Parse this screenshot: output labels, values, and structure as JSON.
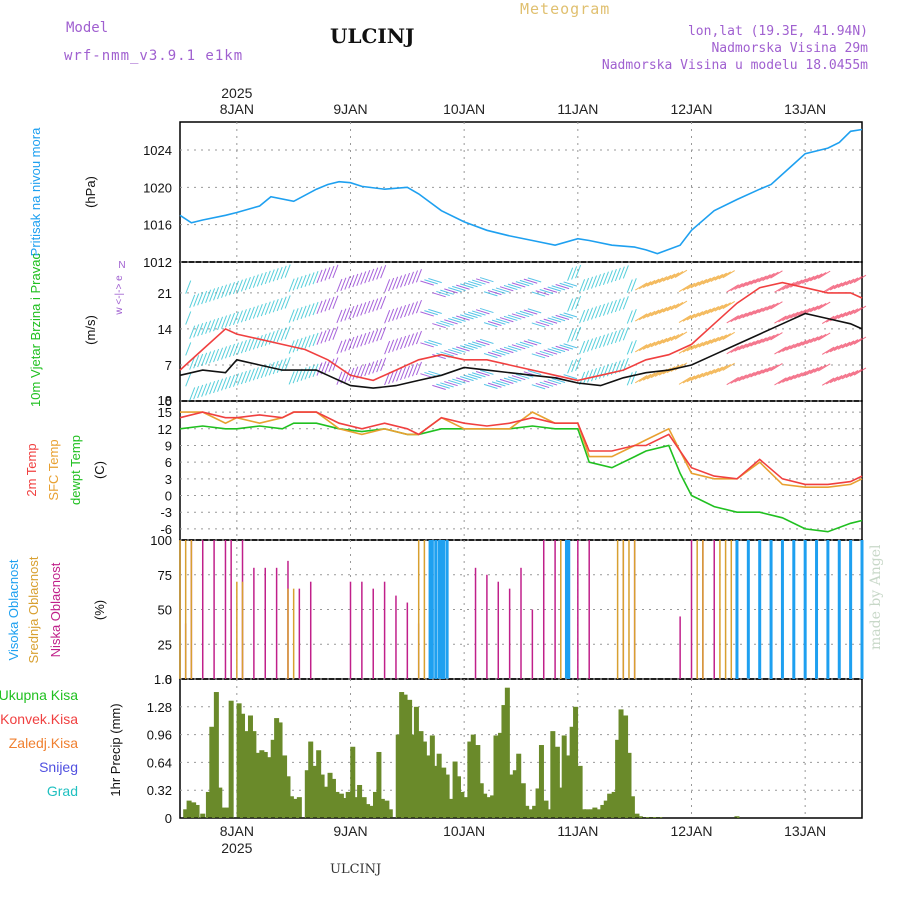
{
  "header": {
    "model_label": "Model",
    "model_name": "wrf-nmm_v3.9.1 e1km",
    "station": "ULCINJ",
    "meteogram": "Meteogram",
    "lonlat": "lon,lat (19.3E, 41.94N)",
    "elev": "Nadmorska Visina 29m",
    "elev_model": "Nadmorska Visina u modelu 18.0455m",
    "footer_station": "ULCINJ",
    "made_by": "made by Angel",
    "year": "2025"
  },
  "colors": {
    "pressure": "#1ea0f0",
    "t2m": "#f04040",
    "tsfc": "#e8a030",
    "dewpt": "#20c020",
    "high_cloud": "#1ea0f0",
    "mid_cloud": "#d8a030",
    "low_cloud": "#c0208a",
    "precip_total": "#20c020",
    "precip_conv": "#f04040",
    "precip_frz": "#f08030",
    "snow": "#5050e0",
    "graupel": "#20c0c0",
    "precip_bar": "#6a8a2a"
  },
  "chart_data": [
    {
      "type": "line",
      "panel": "pressure",
      "ylabel_name": "Pritisak na nivou mora",
      "ylabel_unit": "(hPa)",
      "ylim": [
        1012,
        1027
      ],
      "yticks": [
        1012,
        1016,
        1020,
        1024
      ],
      "xlim": [
        -0.5,
        5.5
      ],
      "day_labels": [
        "8JAN",
        "9JAN",
        "10JAN",
        "11JAN",
        "12JAN",
        "13JAN"
      ],
      "series": [
        {
          "x": [
            -0.5,
            -0.4,
            -0.3,
            -0.1,
            0,
            0.2,
            0.3,
            0.5,
            0.7,
            0.8,
            0.9,
            1.0,
            1.1,
            1.3,
            1.5,
            1.6,
            1.8,
            2.0,
            2.2,
            2.4,
            2.6,
            2.8,
            3.0,
            3.1,
            3.3,
            3.5,
            3.6,
            3.7,
            3.9,
            4.0,
            4.2,
            4.4,
            4.6,
            4.7,
            4.9,
            5.0,
            5.2,
            5.3,
            5.4,
            5.5
          ],
          "y": [
            1017,
            1016.2,
            1016.5,
            1017,
            1017.3,
            1018,
            1019,
            1018.5,
            1019.8,
            1020.3,
            1020.6,
            1020.5,
            1020.1,
            1019.8,
            1020,
            1019.3,
            1017.5,
            1016.3,
            1015.4,
            1014.8,
            1014.3,
            1013.8,
            1014.5,
            1014.3,
            1013.8,
            1013.6,
            1013.3,
            1012.9,
            1013.8,
            1015.4,
            1017.5,
            1018.7,
            1019.8,
            1020.3,
            1022.5,
            1023.6,
            1024.2,
            1024.8,
            1026,
            1026.2
          ]
        }
      ]
    },
    {
      "type": "line",
      "panel": "wind",
      "ylabel_name": "10m Vjetar Brzina i Pravac",
      "ylabel_unit": "(m/s)",
      "compass_label": "w <-|-> e",
      "compass_ns": "N",
      "ylim": [
        0,
        27
      ],
      "yticks": [
        0,
        7,
        14,
        21
      ],
      "ytick_labels": [
        "0",
        "7",
        "14",
        "21"
      ],
      "top_label": "18",
      "series": [
        {
          "name": "speed",
          "x": [
            -0.5,
            -0.3,
            -0.1,
            0,
            0.2,
            0.4,
            0.6,
            0.7,
            0.8,
            1.0,
            1.2,
            1.4,
            1.6,
            1.8,
            2.0,
            2.2,
            2.4,
            2.6,
            2.8,
            3.0,
            3.2,
            3.4,
            3.6,
            3.8,
            4.0,
            4.2,
            4.4,
            4.6,
            4.8,
            5.0,
            5.2,
            5.4,
            5.5
          ],
          "y": [
            5,
            6,
            5.5,
            8,
            7,
            6,
            6,
            6,
            5,
            3,
            2.5,
            3,
            4,
            5,
            6.5,
            6,
            5.5,
            5,
            4.5,
            3.5,
            3,
            4.5,
            5.5,
            6,
            7,
            9,
            11,
            13,
            15,
            17,
            16,
            15,
            14
          ]
        },
        {
          "name": "gust",
          "x": [
            -0.5,
            -0.3,
            -0.1,
            0,
            0.2,
            0.4,
            0.6,
            0.8,
            1.0,
            1.2,
            1.4,
            1.6,
            1.8,
            2.0,
            2.2,
            2.4,
            2.6,
            2.8,
            3.0,
            3.2,
            3.4,
            3.6,
            3.8,
            4.0,
            4.2,
            4.4,
            4.6,
            4.8,
            5.0,
            5.2,
            5.4,
            5.5
          ],
          "y": [
            6,
            10,
            14,
            13,
            12,
            11,
            10,
            8,
            5,
            4,
            6,
            8,
            9,
            8,
            8,
            7,
            6,
            5,
            4,
            5,
            6,
            8,
            9,
            11,
            15,
            19,
            22,
            23,
            22,
            21,
            21,
            20
          ]
        }
      ]
    },
    {
      "type": "line",
      "panel": "temperature",
      "ylabel_names": [
        "2m Temp",
        "SFC Temp",
        "dewpt Temp"
      ],
      "ylabel_unit": "(C)",
      "ylim": [
        -8,
        17
      ],
      "yticks": [
        -6,
        -3,
        0,
        3,
        6,
        9,
        12,
        15
      ],
      "series": [
        {
          "name": "2m Temp",
          "x": [
            -0.5,
            -0.3,
            -0.1,
            0,
            0.2,
            0.4,
            0.5,
            0.7,
            0.9,
            1.1,
            1.3,
            1.5,
            1.6,
            1.8,
            2.0,
            2.2,
            2.4,
            2.6,
            2.8,
            3.0,
            3.1,
            3.3,
            3.5,
            3.6,
            3.8,
            3.9,
            4.0,
            4.2,
            4.4,
            4.6,
            4.8,
            5.0,
            5.2,
            5.4,
            5.5
          ],
          "y": [
            14,
            15,
            14,
            14,
            14.5,
            14,
            15,
            15,
            13,
            12,
            13,
            12,
            11,
            14,
            13,
            12.5,
            13,
            14,
            13,
            13,
            8,
            8,
            9,
            9,
            11,
            8,
            5,
            3.5,
            3,
            6.5,
            3,
            2,
            2,
            2.5,
            3.5
          ]
        },
        {
          "name": "SFC Temp",
          "x": [
            -0.5,
            -0.3,
            -0.1,
            0,
            0.2,
            0.4,
            0.5,
            0.7,
            0.9,
            1.1,
            1.3,
            1.5,
            1.6,
            1.8,
            2.0,
            2.2,
            2.4,
            2.6,
            2.8,
            3.0,
            3.1,
            3.3,
            3.5,
            3.6,
            3.8,
            3.9,
            4.0,
            4.2,
            4.4,
            4.6,
            4.8,
            5.0,
            5.2,
            5.4,
            5.5
          ],
          "y": [
            15,
            15,
            13,
            14,
            13,
            14,
            15,
            15,
            12,
            11,
            12,
            11,
            11,
            14,
            12,
            12,
            12,
            15,
            13,
            13,
            7,
            7,
            9,
            10,
            12,
            8,
            4,
            3,
            3,
            6,
            2,
            1.5,
            1.5,
            2,
            3
          ]
        },
        {
          "name": "dewpt Temp",
          "x": [
            -0.5,
            -0.3,
            -0.1,
            0,
            0.2,
            0.4,
            0.5,
            0.7,
            0.9,
            1.1,
            1.3,
            1.5,
            1.6,
            1.8,
            2.0,
            2.2,
            2.4,
            2.6,
            2.8,
            3.0,
            3.1,
            3.3,
            3.5,
            3.6,
            3.8,
            3.9,
            4.0,
            4.2,
            4.4,
            4.6,
            4.8,
            5.0,
            5.2,
            5.4,
            5.5
          ],
          "y": [
            12,
            12.5,
            12,
            12,
            12.5,
            12,
            13,
            13,
            12,
            11.5,
            12,
            11,
            11,
            12,
            12,
            12,
            12,
            12.5,
            12,
            12,
            6,
            5,
            7,
            8,
            9,
            4,
            0,
            -2,
            -3,
            -3,
            -4,
            -6,
            -6.5,
            -5,
            -4.5
          ]
        }
      ]
    },
    {
      "type": "bar",
      "panel": "clouds",
      "ylabel_names": [
        "Visoka Oblacnost",
        "Srednja Oblacnost",
        "Niska Oblacnost"
      ],
      "ylabel_unit": "(%)",
      "ylim": [
        0,
        100
      ],
      "yticks": [
        0,
        25,
        50,
        75,
        100
      ],
      "series": [
        {
          "name": "Niska Oblacnost",
          "x": [
            -0.45,
            -0.4,
            -0.3,
            -0.2,
            -0.1,
            -0.05,
            0.05,
            0.15,
            0.25,
            0.35,
            0.45,
            0.55,
            0.65,
            1.0,
            1.1,
            1.2,
            1.3,
            1.4,
            1.5,
            1.6,
            1.7,
            2.1,
            2.2,
            2.3,
            2.4,
            2.5,
            2.6,
            2.7,
            2.8,
            2.9,
            3.0,
            3.1,
            3.4,
            3.5,
            3.9,
            4.0,
            4.1,
            4.2,
            4.4,
            4.6,
            4.8,
            5.0,
            5.2,
            5.4
          ],
          "y": [
            40,
            100,
            100,
            100,
            100,
            100,
            100,
            80,
            80,
            80,
            85,
            65,
            70,
            70,
            70,
            65,
            70,
            60,
            55,
            40,
            35,
            80,
            75,
            70,
            65,
            80,
            50,
            100,
            100,
            100,
            100,
            100,
            100,
            100,
            45,
            100,
            100,
            100,
            100,
            100,
            100,
            100,
            100,
            100
          ]
        },
        {
          "name": "Srednja Oblacnost",
          "x": [
            -0.5,
            -0.45,
            -0.4,
            0.0,
            0.05,
            0.45,
            0.5,
            1.6,
            1.65,
            1.7,
            2.85,
            2.9,
            3.35,
            3.4,
            3.45,
            3.5,
            4.05,
            4.1,
            4.25,
            4.3,
            4.35,
            4.5,
            4.6,
            4.7,
            4.8,
            5.0,
            5.2,
            5.4
          ],
          "y": [
            100,
            100,
            100,
            70,
            70,
            65,
            65,
            100,
            100,
            100,
            100,
            100,
            100,
            100,
            100,
            100,
            100,
            100,
            100,
            100,
            100,
            100,
            100,
            100,
            100,
            100,
            100,
            100
          ]
        },
        {
          "name": "Visoka Oblacnost",
          "x": [
            1.7,
            1.72,
            1.75,
            1.78,
            1.8,
            1.82,
            1.85,
            2.9,
            2.92,
            4.4,
            4.5,
            4.6,
            4.7,
            4.8,
            4.9,
            5.0,
            5.1,
            5.2,
            5.3,
            5.4,
            5.5
          ],
          "y": [
            100,
            100,
            100,
            100,
            100,
            100,
            100,
            100,
            100,
            100,
            100,
            100,
            100,
            100,
            100,
            100,
            100,
            100,
            100,
            100,
            100
          ]
        }
      ]
    },
    {
      "type": "bar",
      "panel": "precip",
      "ylabel_unit": "1hr Precip (mm)",
      "legend": [
        "Ukupna Kisa",
        "Konvek.Kisa",
        "Zaledj.Kisa",
        "Snijeg",
        "Grad"
      ],
      "ylim": [
        0,
        1.6
      ],
      "yticks": [
        0,
        0.32,
        0.64,
        0.96,
        1.28,
        1.6
      ],
      "ytick_labels": [
        "0",
        "0.32",
        "0.64",
        "0.96",
        "1.28",
        "1.6"
      ],
      "categories_x": [
        -0.45,
        -0.42,
        -0.38,
        -0.35,
        -0.3,
        -0.25,
        -0.22,
        -0.18,
        -0.15,
        -0.12,
        -0.08,
        -0.05,
        0.02,
        0.05,
        0.08,
        0.12,
        0.15,
        0.18,
        0.22,
        0.25,
        0.28,
        0.32,
        0.35,
        0.38,
        0.42,
        0.45,
        0.48,
        0.52,
        0.55,
        0.62,
        0.65,
        0.68,
        0.72,
        0.75,
        0.78,
        0.82,
        0.85,
        0.88,
        0.92,
        0.95,
        0.98,
        1.02,
        1.05,
        1.08,
        1.12,
        1.15,
        1.18,
        1.22,
        1.25,
        1.28,
        1.32,
        1.35,
        1.42,
        1.45,
        1.48,
        1.52,
        1.55,
        1.58,
        1.62,
        1.65,
        1.68,
        1.72,
        1.75,
        1.78,
        1.82,
        1.85,
        1.88,
        1.92,
        1.95,
        1.98,
        2.02,
        2.05,
        2.08,
        2.12,
        2.15,
        2.18,
        2.22,
        2.25,
        2.28,
        2.32,
        2.35,
        2.38,
        2.42,
        2.45,
        2.48,
        2.52,
        2.55,
        2.58,
        2.62,
        2.65,
        2.68,
        2.72,
        2.75,
        2.78,
        2.82,
        2.85,
        2.88,
        2.92,
        2.95,
        2.98,
        3.02,
        3.05,
        3.08,
        3.12,
        3.15,
        3.18,
        3.22,
        3.25,
        3.28,
        3.32,
        3.35,
        3.38,
        3.42,
        3.45,
        3.48,
        3.52,
        3.55,
        3.58,
        3.62,
        3.65,
        3.68,
        3.72,
        4.4
      ],
      "values": [
        0.1,
        0.2,
        0.18,
        0.15,
        0.05,
        0.3,
        1.05,
        1.45,
        0.35,
        0.12,
        0.12,
        1.35,
        1.32,
        1.2,
        1.0,
        1.18,
        1.0,
        0.75,
        0.78,
        0.76,
        0.7,
        0.9,
        1.15,
        1.1,
        0.72,
        0.48,
        0.25,
        0.22,
        0.24,
        0.55,
        0.88,
        0.6,
        0.78,
        0.5,
        0.36,
        0.52,
        0.45,
        0.3,
        0.28,
        0.23,
        0.3,
        0.82,
        0.24,
        0.38,
        0.24,
        0.16,
        0.14,
        0.3,
        0.76,
        0.22,
        0.2,
        0.1,
        0.96,
        1.45,
        1.42,
        1.36,
        0.96,
        1.28,
        1.0,
        0.88,
        0.72,
        0.95,
        0.6,
        0.74,
        0.58,
        0.5,
        0.22,
        0.65,
        0.48,
        0.3,
        0.24,
        0.88,
        0.96,
        0.84,
        0.4,
        0.28,
        0.24,
        0.26,
        0.95,
        0.98,
        1.3,
        1.5,
        0.5,
        0.55,
        0.74,
        0.4,
        0.14,
        0.1,
        0.14,
        0.34,
        0.84,
        0.2,
        0.1,
        1.0,
        0.82,
        0.35,
        0.95,
        0.72,
        1.05,
        1.28,
        0.6,
        0.1,
        0.1,
        0.1,
        0.12,
        0.1,
        0.15,
        0.2,
        0.28,
        0.3,
        0.9,
        1.25,
        1.18,
        0.75,
        0.25,
        0.05,
        0.02,
        0.01,
        0.01,
        0.01,
        0.01,
        0.01,
        0.02
      ]
    }
  ]
}
